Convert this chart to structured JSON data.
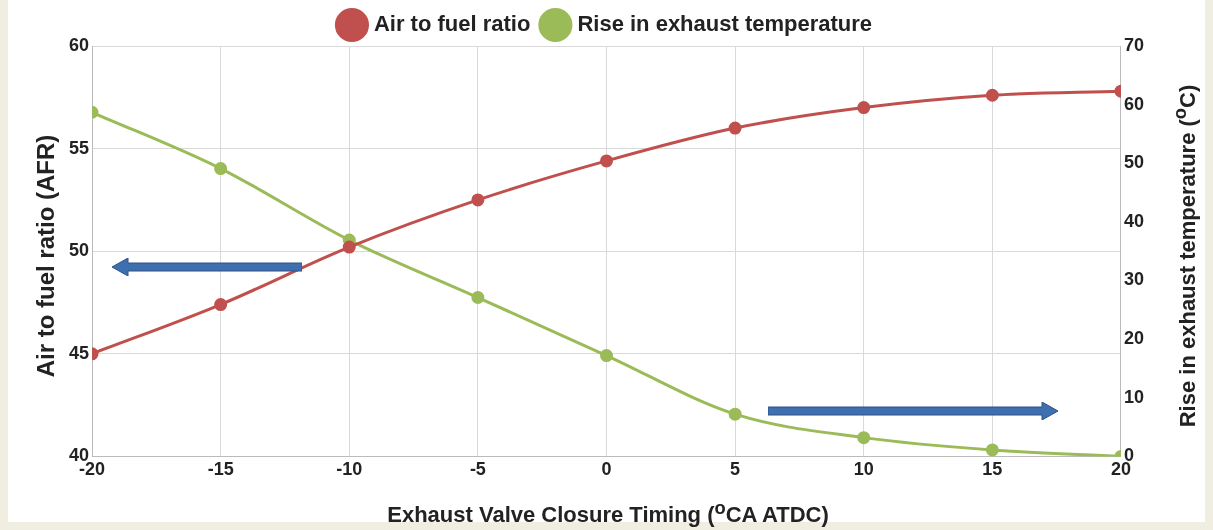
{
  "chart_data": {
    "type": "line",
    "xlabel": "Exhaust Valve Closure Timing ($^{o}$CA ATDC)",
    "ylabel": "Air to fuel ratio (AFR)",
    "y2label": "Rise in exhaust temperature ($^{o}$C)",
    "x": [
      -20,
      -15,
      -10,
      -5,
      0,
      5,
      10,
      15,
      20
    ],
    "xlim": [
      -20,
      20
    ],
    "xticks": [
      -20,
      -15,
      -10,
      -5,
      0,
      5,
      10,
      15,
      20
    ],
    "ylim": [
      40,
      60
    ],
    "yticks": [
      40,
      45,
      50,
      55,
      60
    ],
    "y2lim": [
      0,
      70
    ],
    "y2ticks": [
      0,
      10,
      20,
      30,
      40,
      50,
      60,
      70
    ],
    "grid": true,
    "legend": "top",
    "marker": "circle",
    "line_style": "solid",
    "series": [
      {
        "name": "Air to fuel ratio",
        "color": "#c0504d",
        "values": [
          45.0,
          47.4,
          50.2,
          52.5,
          54.4,
          56.0,
          57.0,
          57.6,
          57.8
        ]
      },
      {
        "name": "Rise in exhaust temperature",
        "color": "#9bbb59",
        "axis": "y2",
        "values": [
          58.7,
          49.1,
          36.9,
          27.1,
          17.2,
          7.2,
          3.2,
          1.1,
          0
        ]
      }
    ]
  }
}
